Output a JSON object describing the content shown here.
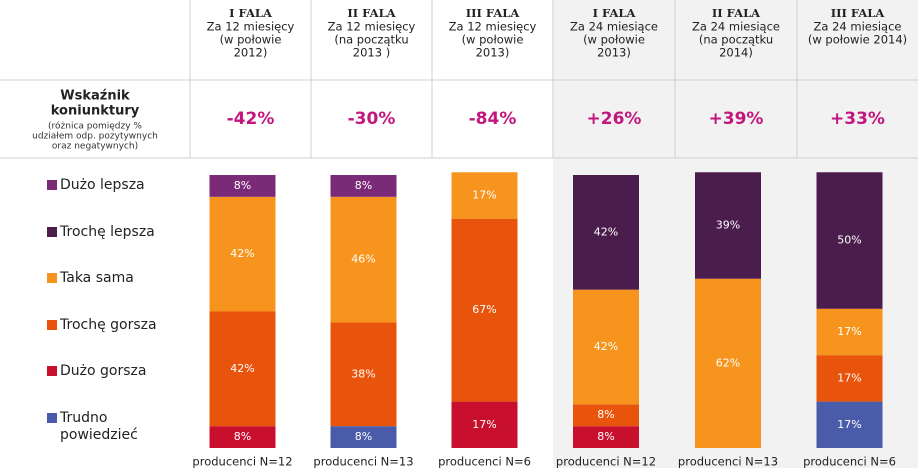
{
  "header": {
    "row_label": [
      "Wskaźnik",
      "koniunktury"
    ],
    "row_note": [
      "(różnica pomiędzy %",
      "udziałem odp. pozytywnych",
      "oraz negatywnych)"
    ],
    "columns": [
      {
        "lines": [
          "I FALA",
          "Za 12 miesięcy",
          "(w połowie",
          "2012)"
        ],
        "indicator": "-42%"
      },
      {
        "lines": [
          "II FALA",
          "Za 12 miesięcy",
          "(na początku",
          "2013 )"
        ],
        "indicator": "-30%"
      },
      {
        "lines": [
          "III FALA",
          "Za 12 miesięcy",
          "(w połowie",
          "2013)"
        ],
        "indicator": "-84%"
      },
      {
        "lines": [
          "I FALA",
          "Za 24 miesiące",
          "(w połowie",
          "2013)"
        ],
        "indicator": "+26%"
      },
      {
        "lines": [
          "II FALA",
          "Za 24 miesiące",
          "(na początku",
          "2014)"
        ],
        "indicator": "+39%"
      },
      {
        "lines": [
          "III FALA",
          "Za 24 miesiące",
          "(w połowie 2014)"
        ],
        "indicator": "+33%"
      }
    ]
  },
  "chart_data": {
    "type": "stacked_bar",
    "categories": [
      "producenci N=12",
      "producenci N=13",
      "producenci N=6",
      "producenci N=12",
      "producenci N=13",
      "producenci N=6"
    ],
    "ylim": [
      0,
      100
    ],
    "series": [
      {
        "name": "Trudno powiedzieć",
        "color": "#4a5ba9",
        "values": [
          0,
          8,
          0,
          0,
          0,
          17
        ],
        "value_labels": [
          null,
          "8%",
          null,
          null,
          null,
          "17%"
        ]
      },
      {
        "name": "Dużo gorsza",
        "color": "#c8102e",
        "values": [
          8,
          0,
          17,
          8,
          0,
          0
        ],
        "value_labels": [
          "8%",
          null,
          "17%",
          "8%",
          null,
          null
        ]
      },
      {
        "name": "Trochę gorsza",
        "color": "#e8540c",
        "values": [
          42,
          38,
          67,
          8,
          0,
          17
        ],
        "value_labels": [
          "42%",
          "38%",
          "67%",
          "8%",
          null,
          "17%"
        ]
      },
      {
        "name": "Taka sama",
        "color": "#f7941e",
        "values": [
          42,
          46,
          17,
          42,
          62,
          17
        ],
        "value_labels": [
          "42%",
          "46%",
          "17%",
          "42%",
          "62%",
          "17%"
        ]
      },
      {
        "name": "Trochę lepsza",
        "color": "#4a1d4c",
        "values": [
          0,
          0,
          0,
          42,
          39,
          50
        ],
        "value_labels": [
          null,
          null,
          null,
          "42%",
          "39%",
          "50%"
        ]
      },
      {
        "name": "Dużo lepsza",
        "color": "#7b2a78",
        "values": [
          8,
          8,
          0,
          0,
          0,
          0
        ],
        "value_labels": [
          "8%",
          "8%",
          null,
          null,
          null,
          null
        ]
      }
    ]
  }
}
